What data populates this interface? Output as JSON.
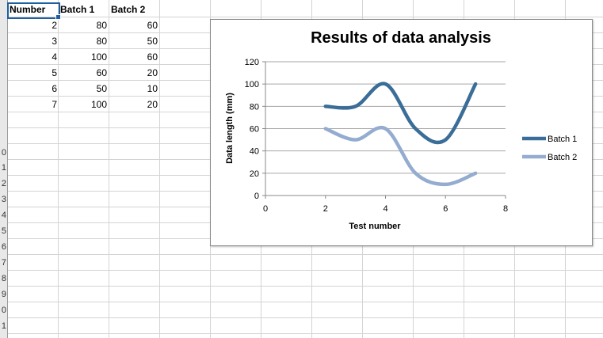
{
  "row_numbers": [
    "0",
    "1",
    "2",
    "3",
    "4",
    "5",
    "6",
    "7",
    "8",
    "9",
    "0",
    "1"
  ],
  "table": {
    "headers": [
      "Number",
      "Batch 1",
      "Batch 2"
    ],
    "rows": [
      [
        "2",
        "80",
        "60"
      ],
      [
        "3",
        "80",
        "50"
      ],
      [
        "4",
        "100",
        "60"
      ],
      [
        "5",
        "60",
        "20"
      ],
      [
        "6",
        "50",
        "10"
      ],
      [
        "7",
        "100",
        "20"
      ]
    ]
  },
  "chart_data": {
    "type": "line",
    "title": "Results of data analysis",
    "xlabel": "Test number",
    "ylabel": "Data length (mm)",
    "x": [
      2,
      3,
      4,
      5,
      6,
      7
    ],
    "series": [
      {
        "name": "Batch 1",
        "values": [
          80,
          80,
          100,
          60,
          50,
          100
        ],
        "color": "#3a6d97"
      },
      {
        "name": "Batch 2",
        "values": [
          60,
          50,
          60,
          20,
          10,
          20
        ],
        "color": "#93acd0"
      }
    ],
    "xlim": [
      0,
      8
    ],
    "ylim": [
      0,
      120
    ],
    "xticks": [
      "0",
      "2",
      "4",
      "6",
      "8"
    ],
    "yticks": [
      "0",
      "20",
      "40",
      "60",
      "80",
      "100",
      "120"
    ],
    "smooth": true,
    "grid": "horizontal",
    "legend_position": "right"
  }
}
